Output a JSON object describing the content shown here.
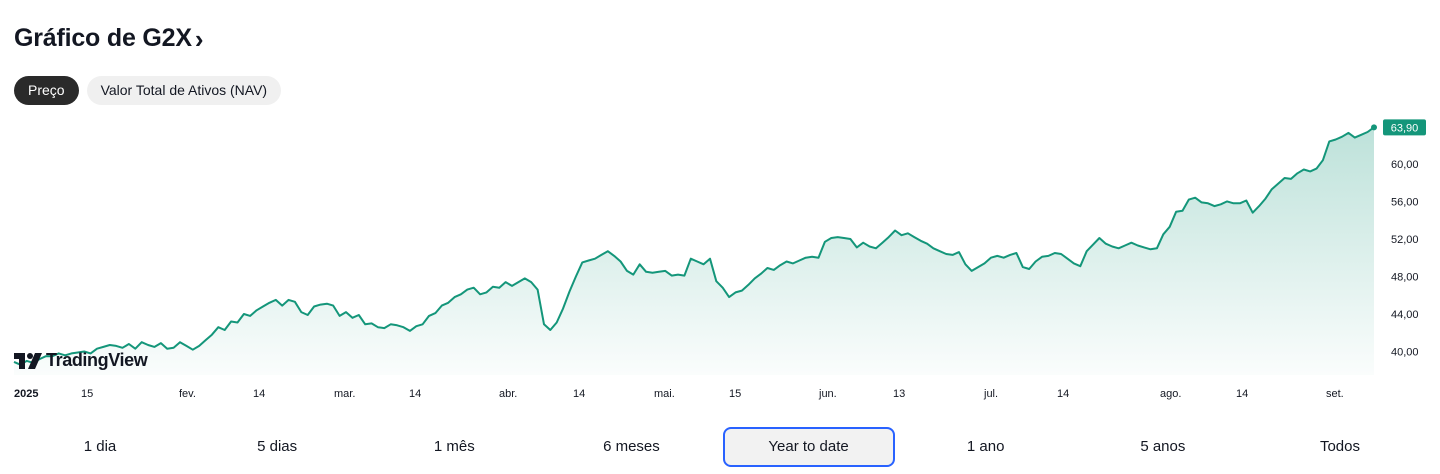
{
  "header": {
    "title": "Gráfico de G2X",
    "chevron": "›"
  },
  "tabs": [
    {
      "label": "Preço",
      "active": true
    },
    {
      "label": "Valor Total de Ativos (NAV)",
      "active": false
    }
  ],
  "logo": {
    "text": "TradingView"
  },
  "ranges": [
    {
      "label": "1 dia",
      "active": false
    },
    {
      "label": "5 dias",
      "active": false
    },
    {
      "label": "1 mês",
      "active": false
    },
    {
      "label": "6 meses",
      "active": false
    },
    {
      "label": "Year to date",
      "active": true
    },
    {
      "label": "1 ano",
      "active": false
    },
    {
      "label": "5 anos",
      "active": false
    },
    {
      "label": "Todos",
      "active": false
    }
  ],
  "colors": {
    "line": "#14967a",
    "badge": "#14967a",
    "active_range_border": "#2962ff"
  },
  "chart_data": {
    "type": "area",
    "ylim": [
      37.5,
      65
    ],
    "y_ticks": [
      40,
      44,
      48,
      52,
      56,
      60
    ],
    "y_tick_labels": [
      "40,00",
      "44,00",
      "48,00",
      "52,00",
      "56,00",
      "60,00"
    ],
    "x_tick_labels": [
      {
        "label": "2025",
        "bold": true
      },
      {
        "label": "15"
      },
      {
        "label": "fev."
      },
      {
        "label": "14"
      },
      {
        "label": "mar."
      },
      {
        "label": "14"
      },
      {
        "label": "abr."
      },
      {
        "label": "14"
      },
      {
        "label": "mai."
      },
      {
        "label": "15"
      },
      {
        "label": "jun."
      },
      {
        "label": "13"
      },
      {
        "label": "jul."
      },
      {
        "label": "14"
      },
      {
        "label": "ago."
      },
      {
        "label": "14"
      },
      {
        "label": "set."
      }
    ],
    "last_value_label": "63,90",
    "series": [
      {
        "values": [
          38.9,
          38.6,
          39.0,
          38.8,
          39.2,
          39.5,
          39.5,
          39.8,
          39.6,
          39.8,
          39.9,
          40.0,
          39.8,
          40.3,
          40.5,
          40.7,
          40.6,
          40.4,
          40.8,
          40.3,
          41.0,
          40.7,
          40.5,
          40.9,
          40.3,
          40.4,
          41.0,
          40.6,
          40.2,
          40.6,
          41.2,
          41.8,
          42.6,
          42.3,
          43.2,
          43.1,
          44.0,
          43.8,
          44.4,
          44.8,
          45.2,
          45.5,
          44.9,
          45.5,
          45.3,
          44.2,
          43.9,
          44.8,
          45.0,
          45.1,
          44.9,
          43.8,
          44.2,
          43.6,
          43.9,
          42.9,
          43.0,
          42.6,
          42.5,
          42.9,
          42.8,
          42.6,
          42.2,
          42.7,
          42.9,
          43.8,
          44.1,
          44.9,
          45.2,
          45.8,
          46.1,
          46.6,
          46.8,
          46.1,
          46.3,
          46.9,
          46.8,
          47.4,
          47.0,
          47.4,
          47.8,
          47.4,
          46.6,
          42.9,
          42.3,
          43.1,
          44.6,
          46.4,
          48.0,
          49.5,
          49.7,
          49.9,
          50.3,
          50.7,
          50.2,
          49.6,
          48.6,
          48.2,
          49.3,
          48.5,
          48.4,
          48.5,
          48.6,
          48.1,
          48.2,
          48.1,
          49.9,
          49.6,
          49.3,
          49.9,
          47.5,
          46.8,
          45.8,
          46.3,
          46.5,
          47.1,
          47.8,
          48.3,
          48.9,
          48.7,
          49.2,
          49.6,
          49.4,
          49.7,
          50.0,
          50.1,
          50.0,
          51.7,
          52.1,
          52.2,
          52.1,
          52.0,
          51.1,
          51.6,
          51.2,
          51.0,
          51.6,
          52.2,
          52.9,
          52.4,
          52.6,
          52.2,
          51.8,
          51.5,
          51.0,
          50.7,
          50.4,
          50.3,
          50.6,
          49.3,
          48.6,
          49.0,
          49.4,
          50.0,
          50.2,
          50.0,
          50.3,
          50.5,
          49.0,
          48.8,
          49.6,
          50.1,
          50.2,
          50.5,
          50.4,
          49.9,
          49.4,
          49.1,
          50.7,
          51.4,
          52.1,
          51.5,
          51.2,
          51.0,
          51.3,
          51.6,
          51.3,
          51.1,
          50.9,
          51.0,
          52.5,
          53.3,
          54.9,
          55.0,
          56.2,
          56.4,
          55.9,
          55.8,
          55.5,
          55.7,
          56.0,
          55.8,
          55.8,
          56.1,
          54.8,
          55.5,
          56.3,
          57.3,
          57.9,
          58.5,
          58.4,
          59.0,
          59.4,
          59.2,
          59.5,
          60.4,
          62.4,
          62.6,
          62.9,
          63.3,
          62.8,
          63.1,
          63.4,
          63.9
        ]
      }
    ]
  }
}
